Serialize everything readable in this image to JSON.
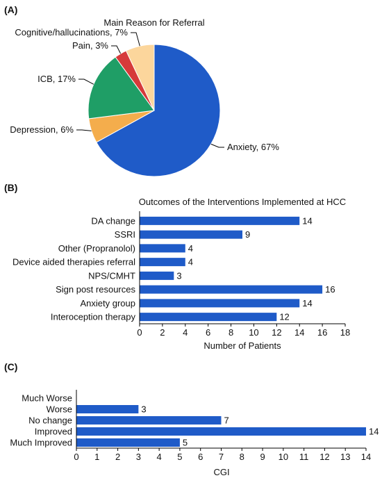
{
  "colors": {
    "bar": "#1f5bc8",
    "axis": "#000000",
    "pie_outline": "#ffffff"
  },
  "panels": [
    {
      "label": "(A)"
    },
    {
      "label": "(B)"
    },
    {
      "label": "(C)"
    }
  ],
  "chart_data": [
    {
      "type": "pie",
      "title": "Main Reason for Referral",
      "slices": [
        {
          "label": "Anxiety, 67%",
          "value": 67,
          "color": "#1f5bc8"
        },
        {
          "label": "Depression, 6%",
          "value": 6,
          "color": "#f4ad4c"
        },
        {
          "label": "ICB, 17%",
          "value": 17,
          "color": "#1f9e66"
        },
        {
          "label": "Pain, 3%",
          "value": 3,
          "color": "#d63a3a"
        },
        {
          "label": "Cognitive/hallucinations, 7%",
          "value": 7,
          "color": "#fcd69c"
        }
      ]
    },
    {
      "type": "bar",
      "orientation": "horizontal",
      "title": "Outcomes of the Interventions Implemented at HCC",
      "xlabel": "Number of Patients",
      "ylabel": "",
      "categories": [
        "DA change",
        "SSRI",
        "Other (Propranolol)",
        "Device aided therapies referral",
        "NPS/CMHT",
        "Sign post resources",
        "Anxiety group",
        "Interoception therapy"
      ],
      "values": [
        14,
        9,
        4,
        4,
        3,
        16,
        14,
        12
      ],
      "xlim": [
        0,
        18
      ],
      "xticks": [
        0,
        2,
        4,
        6,
        8,
        10,
        12,
        14,
        16,
        18
      ],
      "grid": false
    },
    {
      "type": "bar",
      "orientation": "horizontal",
      "title": "",
      "xlabel": "CGI",
      "ylabel": "",
      "categories": [
        "Much Worse",
        "Worse",
        "No change",
        "Improved",
        "Much Improved"
      ],
      "values": [
        0,
        3,
        7,
        14,
        5
      ],
      "value_labels": [
        "",
        "3",
        "7",
        "14",
        "5"
      ],
      "xlim": [
        0,
        14
      ],
      "xticks": [
        0,
        1,
        2,
        3,
        4,
        5,
        6,
        7,
        8,
        9,
        10,
        11,
        12,
        13,
        14
      ],
      "grid": false
    }
  ]
}
